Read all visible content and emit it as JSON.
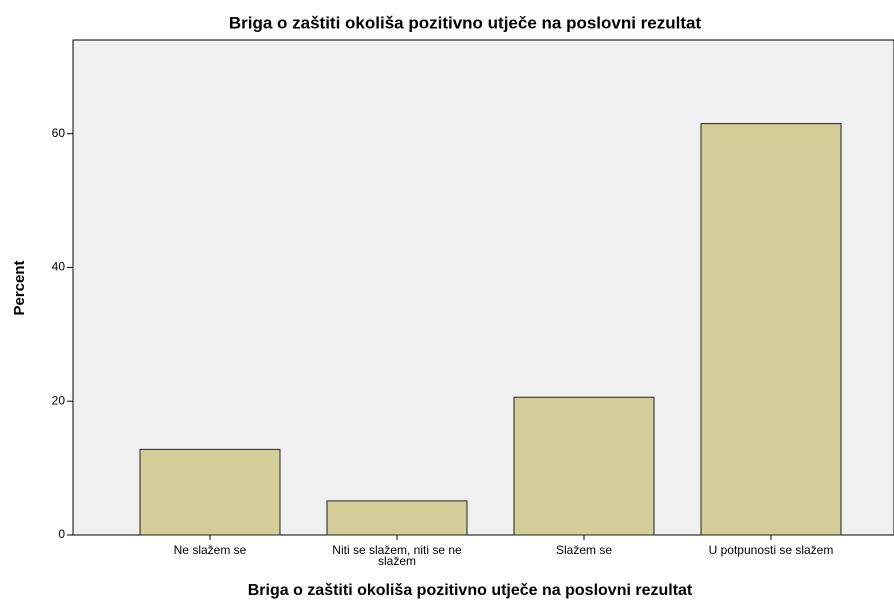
{
  "chart_data": {
    "type": "bar",
    "title": "Briga o zaštiti okoliša pozitivno utječe na poslovni rezultat",
    "x_label": "Briga o zaštiti okoliša pozitivno utječe na poslovni rezultat",
    "y_label": "Percent",
    "categories": [
      "Ne slažem se",
      "Niti se slažem, niti se ne slažem",
      "Slažem se",
      "U potpunosti se slažem"
    ],
    "values": [
      12.8,
      5.1,
      20.6,
      61.5
    ],
    "color": "#d3ce97",
    "ylim": [
      0,
      74
    ],
    "yticks": [
      0,
      20,
      40,
      60
    ],
    "grid": false
  }
}
